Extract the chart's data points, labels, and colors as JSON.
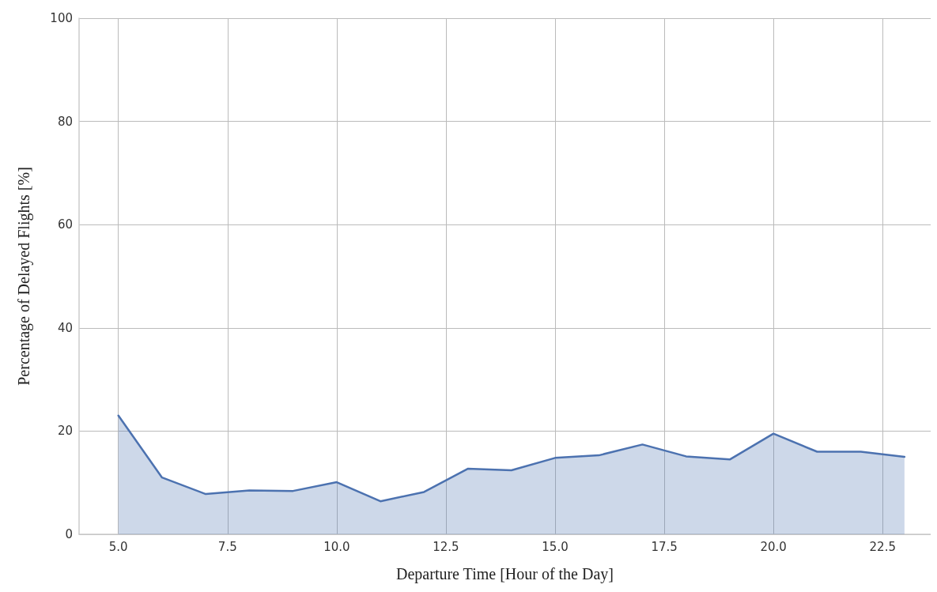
{
  "chart_data": {
    "type": "area",
    "xlabel": "Departure Time [Hour of the Day]",
    "ylabel": "Percentage of Delayed Flights [%]",
    "x": [
      5,
      6,
      7,
      8,
      9,
      10,
      11,
      12,
      13,
      14,
      15,
      16,
      17,
      18,
      19,
      20,
      21,
      22,
      23
    ],
    "series": [
      {
        "color": "#4c72b0",
        "values": [
          23,
          11,
          7.8,
          8.5,
          8.4,
          10.1,
          6.4,
          8.2,
          12.7,
          12.4,
          14.8,
          15.3,
          17.4,
          15.1,
          14.5,
          19.5,
          16,
          16,
          15
        ]
      }
    ],
    "xlim": [
      4.1,
      23.6
    ],
    "xticks": [
      {
        "value": 5,
        "label": "5.0"
      },
      {
        "value": 7.5,
        "label": "7.5"
      },
      {
        "value": 10,
        "label": "10.0"
      },
      {
        "value": 12.5,
        "label": "12.5"
      },
      {
        "value": 15,
        "label": "15.0"
      },
      {
        "value": 17.5,
        "label": "17.5"
      },
      {
        "value": 20,
        "label": "20.0"
      },
      {
        "value": 22.5,
        "label": "22.5"
      }
    ],
    "ylim": [
      0,
      100
    ],
    "yticks": [
      0,
      20,
      40,
      60,
      80,
      100
    ],
    "grid": true,
    "marker": "none",
    "line_style": "solid"
  }
}
